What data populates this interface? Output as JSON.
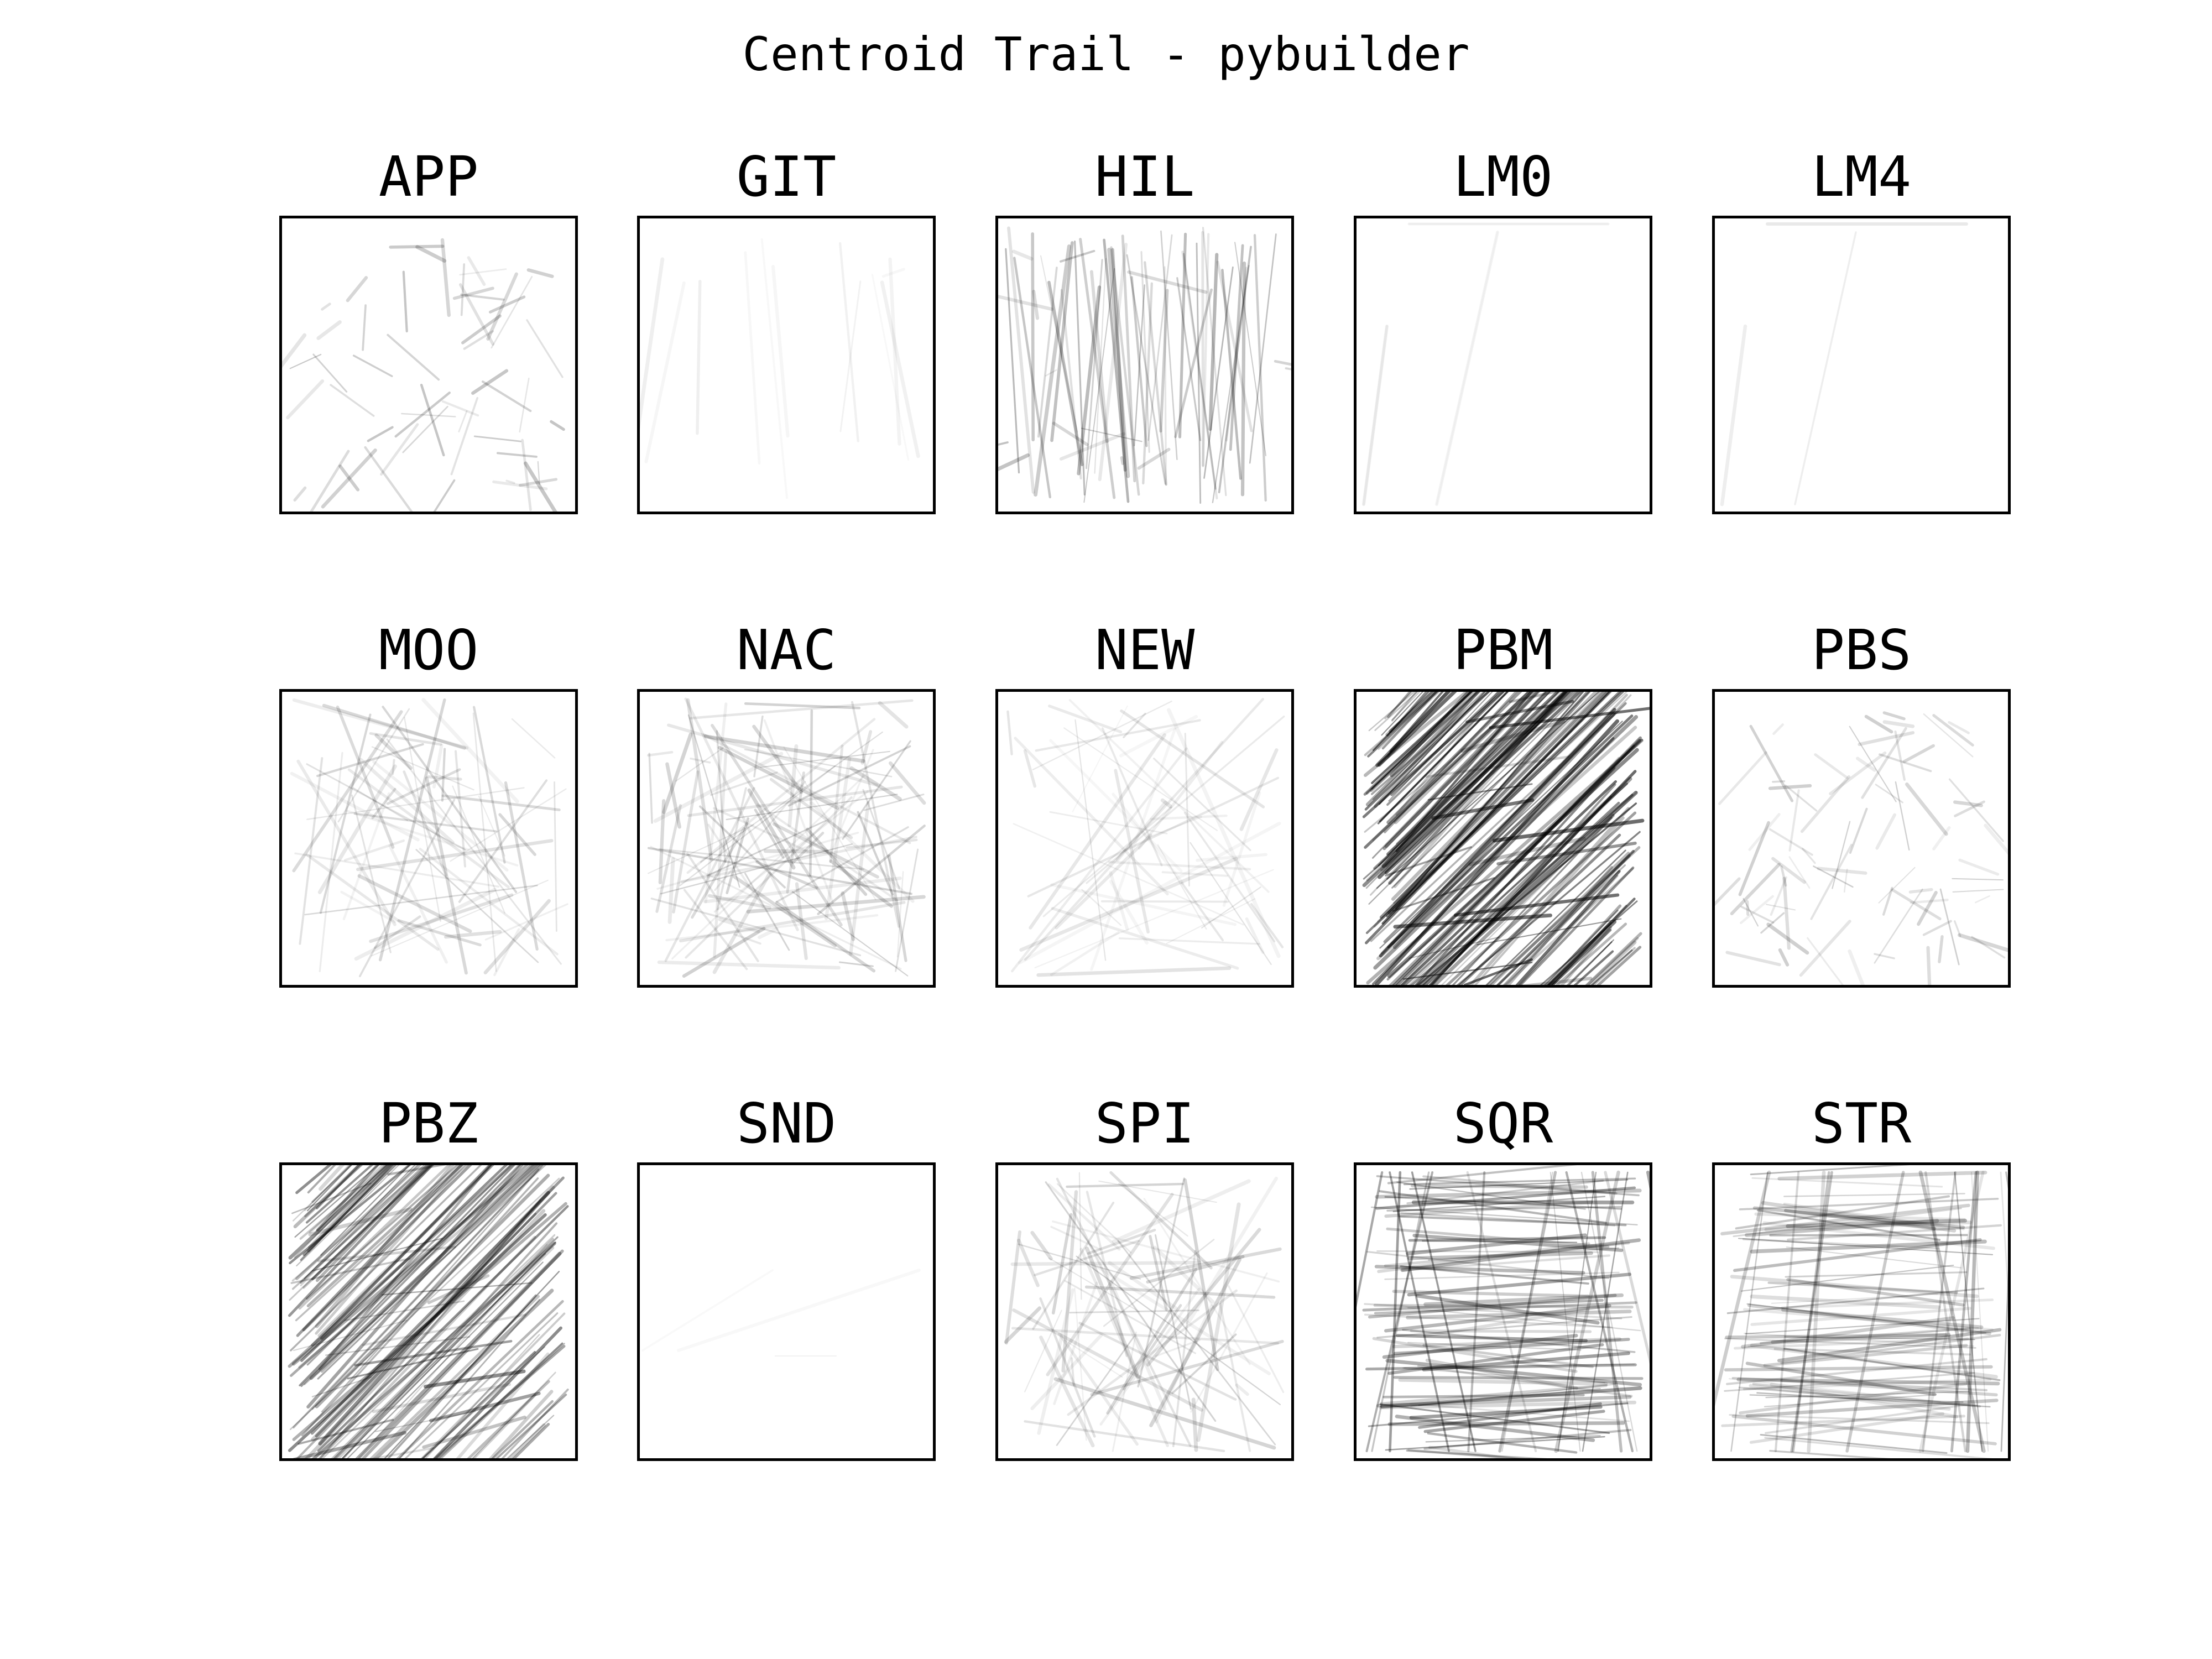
{
  "figure": {
    "title": "Centroid Trail - pybuilder"
  },
  "chart_data": [
    {
      "type": "line",
      "title": "APP",
      "density": 55,
      "pattern": "clusters",
      "darkness": 0.18
    },
    {
      "type": "line",
      "title": "GIT",
      "density": 12,
      "pattern": "vertical-faint",
      "darkness": 0.05
    },
    {
      "type": "line",
      "title": "HIL",
      "density": 70,
      "pattern": "vertical-mix",
      "darkness": 0.22
    },
    {
      "type": "line",
      "title": "LM0",
      "density": 6,
      "pattern": "two-strokes",
      "darkness": 0.04
    },
    {
      "type": "line",
      "title": "LM4",
      "density": 6,
      "pattern": "two-strokes",
      "darkness": 0.04
    },
    {
      "type": "line",
      "title": "MOO",
      "density": 70,
      "pattern": "random",
      "darkness": 0.12
    },
    {
      "type": "line",
      "title": "NAC",
      "density": 110,
      "pattern": "random",
      "darkness": 0.14
    },
    {
      "type": "line",
      "title": "NEW",
      "density": 60,
      "pattern": "random",
      "darkness": 0.09
    },
    {
      "type": "line",
      "title": "PBM",
      "density": 170,
      "pattern": "diagonal-dense",
      "darkness": 0.45
    },
    {
      "type": "line",
      "title": "PBS",
      "density": 80,
      "pattern": "clusters",
      "darkness": 0.15
    },
    {
      "type": "line",
      "title": "PBZ",
      "density": 140,
      "pattern": "diagonal-dense",
      "darkness": 0.35
    },
    {
      "type": "line",
      "title": "SND",
      "density": 3,
      "pattern": "two-strokes-diag",
      "darkness": 0.05
    },
    {
      "type": "line",
      "title": "SPI",
      "density": 80,
      "pattern": "random",
      "darkness": 0.13
    },
    {
      "type": "line",
      "title": "SQR",
      "density": 110,
      "pattern": "horizontal-dense",
      "darkness": 0.3
    },
    {
      "type": "line",
      "title": "STR",
      "density": 100,
      "pattern": "horizontal-dense",
      "darkness": 0.22
    }
  ]
}
